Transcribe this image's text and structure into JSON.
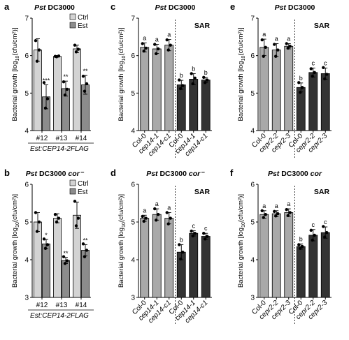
{
  "chart_data": [
    {
      "panel": "a",
      "type": "bar",
      "title": "Pst DC3000",
      "ylabel": "Bacterial growth [log10(cfu/cm²)]",
      "ylim": [
        4,
        7
      ],
      "yticks": [
        4,
        5,
        6,
        7
      ],
      "categories": [
        "#12",
        "#13",
        "#14"
      ],
      "xlabel": "Est:CEP14-2FLAG",
      "legend": [
        "Ctrl",
        "Est"
      ],
      "series": [
        {
          "name": "Ctrl",
          "color": "#d3d3d3",
          "values": [
            6.15,
            5.98,
            6.18
          ],
          "errors": [
            0.3,
            0.02,
            0.1
          ],
          "points": [
            [
              6.4,
              6.15,
              5.85
            ],
            [
              5.98,
              5.99,
              5.97
            ],
            [
              6.28,
              6.17,
              6.1
            ]
          ],
          "labels": [
            "",
            "",
            ""
          ]
        },
        {
          "name": "Est",
          "color": "#8c8c8c",
          "values": [
            4.9,
            5.12,
            5.22
          ],
          "errors": [
            0.32,
            0.2,
            0.25
          ],
          "points": [
            [
              5.28,
              4.85,
              4.6
            ],
            [
              5.3,
              5.1,
              4.95
            ],
            [
              5.45,
              5.25,
              5.05
            ]
          ],
          "labels": [
            "***",
            "**",
            "**"
          ]
        }
      ]
    },
    {
      "panel": "b",
      "type": "bar",
      "title": "Pst DC3000 cor⁻",
      "ylabel": "Bacterial growth [log10(cfu/cm²)]",
      "ylim": [
        3,
        6
      ],
      "yticks": [
        3,
        4,
        5,
        6
      ],
      "categories": [
        "#12",
        "#13",
        "#14"
      ],
      "xlabel": "Est:CEP14-2FLAG",
      "legend": [
        "Ctrl",
        "Est"
      ],
      "series": [
        {
          "name": "Ctrl",
          "color": "#d3d3d3",
          "values": [
            5.0,
            5.1,
            5.18
          ],
          "errors": [
            0.25,
            0.12,
            0.35
          ],
          "points": [
            [
              5.25,
              5.0,
              4.75
            ],
            [
              5.2,
              5.1,
              5.0
            ],
            [
              5.55,
              5.1,
              4.9
            ]
          ],
          "labels": [
            "",
            "",
            ""
          ]
        },
        {
          "name": "Est",
          "color": "#8c8c8c",
          "values": [
            4.42,
            3.98,
            4.25
          ],
          "errors": [
            0.12,
            0.08,
            0.15
          ],
          "points": [
            [
              4.55,
              4.4,
              4.3
            ],
            [
              4.08,
              3.97,
              3.9
            ],
            [
              4.42,
              4.25,
              4.08
            ]
          ],
          "labels": [
            "*",
            "**",
            "**"
          ]
        }
      ]
    },
    {
      "panel": "c",
      "type": "bar",
      "title": "Pst DC3000",
      "annotation": "SAR",
      "ylabel": "Bacterial growth [log10(cfu/cm²)]",
      "ylim": [
        4,
        7
      ],
      "yticks": [
        4,
        5,
        6,
        7
      ],
      "categories": [
        "Col-0",
        "cep14-1",
        "cep14-c1",
        "Col-0",
        "cep14-1",
        "cep14-c1"
      ],
      "colors": [
        "#a9a9a9",
        "#a9a9a9",
        "#a9a9a9",
        "#333333",
        "#333333",
        "#333333"
      ],
      "values": [
        6.22,
        6.18,
        6.28,
        5.22,
        5.37,
        5.35
      ],
      "errors": [
        0.12,
        0.12,
        0.15,
        0.12,
        0.15,
        0.07
      ],
      "points": [
        [
          6.32,
          6.2,
          6.12
        ],
        [
          6.3,
          6.18,
          6.05
        ],
        [
          6.42,
          6.28,
          6.15
        ],
        [
          5.35,
          5.2,
          5.12
        ],
        [
          5.52,
          5.4,
          5.25
        ],
        [
          5.42,
          5.35,
          5.28
        ]
      ],
      "letters": [
        "a",
        "a",
        "a",
        "b",
        "b",
        "b"
      ]
    },
    {
      "panel": "d",
      "type": "bar",
      "title": "Pst DC3000 cor⁻",
      "annotation": "SAR",
      "ylabel": "Bacterial growth [log10(cfu/cm²)]",
      "ylim": [
        3,
        6
      ],
      "yticks": [
        3,
        4,
        5,
        6
      ],
      "categories": [
        "Col-0",
        "cep14-1",
        "cep14-c1",
        "Col-0",
        "cep14-1",
        "cep14-c1"
      ],
      "colors": [
        "#a9a9a9",
        "#a9a9a9",
        "#a9a9a9",
        "#333333",
        "#333333",
        "#333333"
      ],
      "values": [
        5.1,
        5.2,
        5.1,
        4.2,
        4.7,
        4.62
      ],
      "errors": [
        0.08,
        0.15,
        0.15,
        0.2,
        0.07,
        0.08
      ],
      "points": [
        [
          5.15,
          5.1,
          5.02
        ],
        [
          5.35,
          5.2,
          5.05
        ],
        [
          5.25,
          5.1,
          4.95
        ],
        [
          4.4,
          4.2,
          4.02
        ],
        [
          4.76,
          4.7,
          4.63
        ],
        [
          4.7,
          4.62,
          4.55
        ]
      ],
      "letters": [
        "a",
        "a",
        "a",
        "b",
        "c",
        "c"
      ]
    },
    {
      "panel": "e",
      "type": "bar",
      "title": "Pst DC3000",
      "annotation": "SAR",
      "ylabel": "Bacterial growth [log10(cfu/cm²)]",
      "ylim": [
        4,
        7
      ],
      "yticks": [
        4,
        5,
        6,
        7
      ],
      "categories": [
        "Col-0",
        "cepr2-2",
        "cepr2-3",
        "Col-0",
        "cepr2-2",
        "cepr2-3"
      ],
      "colors": [
        "#a9a9a9",
        "#a9a9a9",
        "#a9a9a9",
        "#333333",
        "#333333",
        "#333333"
      ],
      "values": [
        6.22,
        6.15,
        6.25,
        5.15,
        5.55,
        5.52
      ],
      "errors": [
        0.22,
        0.17,
        0.07,
        0.12,
        0.12,
        0.15
      ],
      "points": [
        [
          6.42,
          6.22,
          5.98
        ],
        [
          6.3,
          6.15,
          5.98
        ],
        [
          6.32,
          6.25,
          6.2
        ],
        [
          5.28,
          5.15,
          5.02
        ],
        [
          5.65,
          5.55,
          5.45
        ],
        [
          5.68,
          5.5,
          5.38
        ]
      ],
      "letters": [
        "a",
        "a",
        "a",
        "b",
        "c",
        "c"
      ]
    },
    {
      "panel": "f",
      "type": "bar",
      "title": "Pst DC3000 cor",
      "annotation": "SAR",
      "ylabel": "Bacterial growth [log10(cfu/cm²)]",
      "ylim": [
        3,
        6
      ],
      "yticks": [
        3,
        4,
        5,
        6
      ],
      "categories": [
        "Col-0",
        "cepr2-2",
        "cepr2-3",
        "Col-0",
        "cepr2-2",
        "cepr2-3"
      ],
      "colors": [
        "#a9a9a9",
        "#a9a9a9",
        "#a9a9a9",
        "#333333",
        "#333333",
        "#333333"
      ],
      "values": [
        5.2,
        5.22,
        5.25,
        4.35,
        4.65,
        4.72
      ],
      "errors": [
        0.1,
        0.08,
        0.1,
        0.07,
        0.15,
        0.15
      ],
      "points": [
        [
          5.3,
          5.2,
          5.12
        ],
        [
          5.28,
          5.22,
          5.16
        ],
        [
          5.33,
          5.25,
          5.17
        ],
        [
          4.4,
          4.35,
          4.3
        ],
        [
          4.78,
          4.65,
          4.52
        ],
        [
          4.88,
          4.72,
          4.6
        ]
      ],
      "letters": [
        "a",
        "a",
        "a",
        "b",
        "c",
        "c"
      ]
    }
  ]
}
